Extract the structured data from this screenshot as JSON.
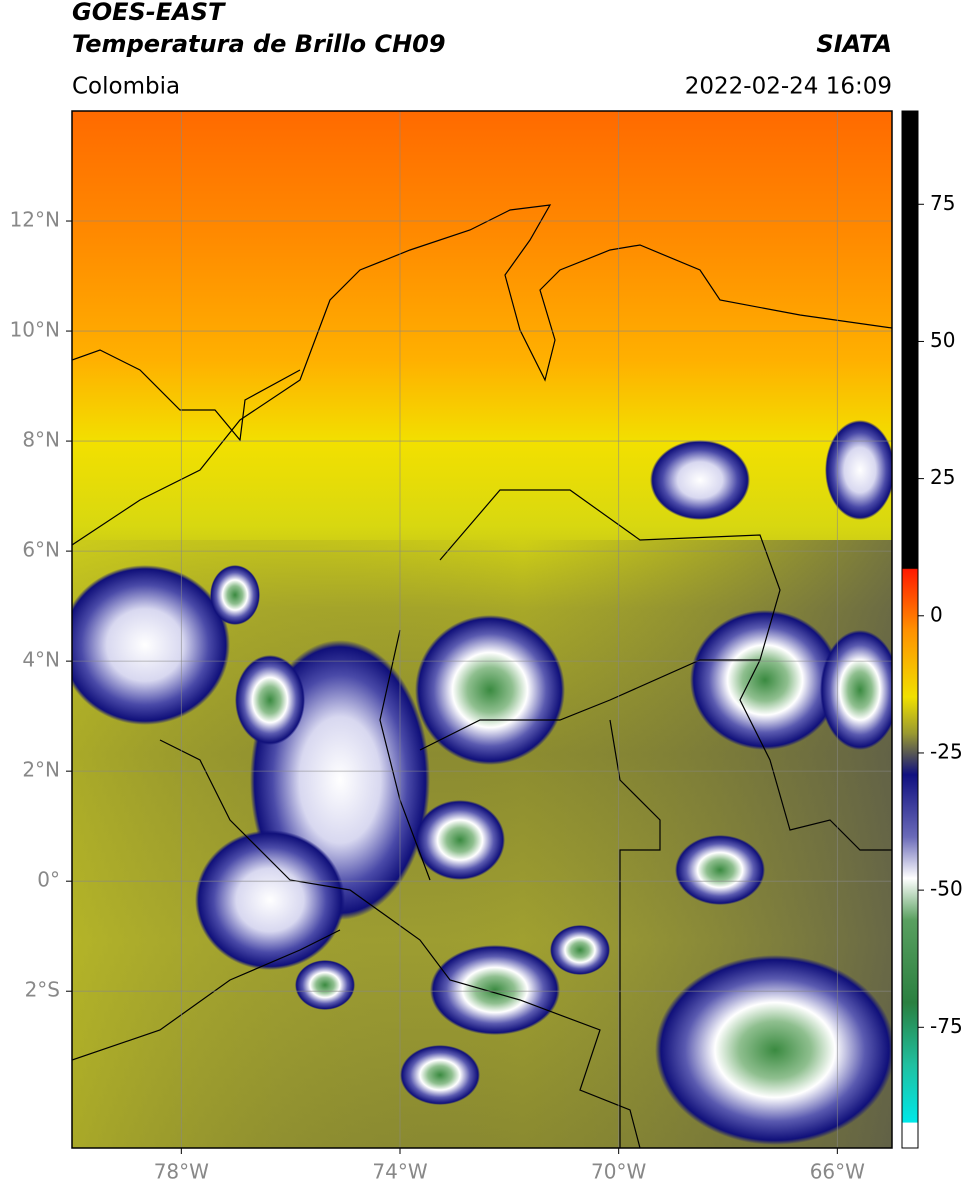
{
  "header": {
    "title": "GOES-EAST",
    "subtitle": "Temperatura de Brillo CH09",
    "source": "SIATA",
    "region": "Colombia",
    "timestamp": "2022-02-24 16:09"
  },
  "map": {
    "xlim": [
      -80,
      -65
    ],
    "ylim": [
      -4.85,
      14
    ],
    "xticks": [
      {
        "value": -78,
        "label": "78°W"
      },
      {
        "value": -74,
        "label": "74°W"
      },
      {
        "value": -70,
        "label": "70°W"
      },
      {
        "value": -66,
        "label": "66°W"
      }
    ],
    "yticks": [
      {
        "value": 12,
        "label": "12°N"
      },
      {
        "value": 10,
        "label": "10°N"
      },
      {
        "value": 8,
        "label": "8°N"
      },
      {
        "value": 6,
        "label": "6°N"
      },
      {
        "value": 4,
        "label": "4°N"
      },
      {
        "value": 2,
        "label": "2°N"
      },
      {
        "value": 0,
        "label": "0°"
      },
      {
        "value": -2,
        "label": "2°S"
      }
    ],
    "grid": true
  },
  "colorbar": {
    "lim": [
      -97,
      92
    ],
    "ticks": [
      75,
      50,
      25,
      0,
      -25,
      -50,
      -75
    ]
  }
}
